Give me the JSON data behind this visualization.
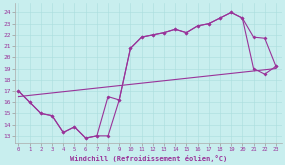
{
  "xlabel": "Windchill (Refroidissement éolien,°C)",
  "bg_color": "#c8eeee",
  "line_color": "#993399",
  "xticks": [
    0,
    1,
    2,
    3,
    4,
    5,
    6,
    7,
    8,
    9,
    10,
    11,
    12,
    13,
    14,
    15,
    16,
    17,
    18,
    19,
    20,
    21,
    22,
    23
  ],
  "yticks": [
    13,
    14,
    15,
    16,
    17,
    18,
    19,
    20,
    21,
    22,
    23,
    24
  ],
  "xlim": [
    -0.3,
    23.5
  ],
  "ylim": [
    12.4,
    24.8
  ],
  "line1_x": [
    0,
    1,
    2,
    3,
    4,
    5,
    6,
    7,
    8,
    9,
    10,
    11,
    12,
    13,
    14,
    15,
    16,
    17,
    18,
    19,
    20,
    21,
    22,
    23
  ],
  "line1_y": [
    17.0,
    16.0,
    15.0,
    14.8,
    13.3,
    13.8,
    12.8,
    13.0,
    16.5,
    16.2,
    20.8,
    21.8,
    22.0,
    22.2,
    22.5,
    22.2,
    22.8,
    23.0,
    23.5,
    24.0,
    23.5,
    21.8,
    21.7,
    19.2
  ],
  "line2_x": [
    0,
    1,
    2,
    3,
    4,
    5,
    6,
    7,
    8,
    9,
    10,
    11,
    12,
    13,
    14,
    15,
    16,
    17,
    18,
    19,
    20,
    21,
    22,
    23
  ],
  "line2_y": [
    17.0,
    16.0,
    15.0,
    14.8,
    13.3,
    13.8,
    12.8,
    13.0,
    13.0,
    16.2,
    20.8,
    21.8,
    22.0,
    22.2,
    22.5,
    22.2,
    22.8,
    23.0,
    23.5,
    24.0,
    23.5,
    19.0,
    18.5,
    19.2
  ],
  "line3_x": [
    0,
    23
  ],
  "line3_y": [
    16.5,
    19.0
  ]
}
